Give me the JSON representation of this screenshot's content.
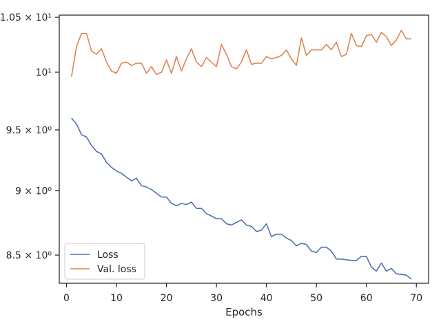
{
  "chart_data": {
    "type": "line",
    "xlabel": "Epochs",
    "ylabel": "",
    "xlim": [
      -1.45,
      72.45
    ],
    "ylim": [
      8.29,
      10.52
    ],
    "y_scale": "log",
    "grid": false,
    "legend_position": "lower-left",
    "x_ticks": [
      {
        "value": 0,
        "label": "0"
      },
      {
        "value": 10,
        "label": "10"
      },
      {
        "value": 20,
        "label": "20"
      },
      {
        "value": 30,
        "label": "30"
      },
      {
        "value": 40,
        "label": "40"
      },
      {
        "value": 50,
        "label": "50"
      },
      {
        "value": 60,
        "label": "60"
      },
      {
        "value": 70,
        "label": "70"
      }
    ],
    "y_ticks": [
      {
        "value": 8.5,
        "label": "8.5 × 10⁰"
      },
      {
        "value": 9.0,
        "label": "9 × 10⁰"
      },
      {
        "value": 9.5,
        "label": "9.5 × 10⁰"
      },
      {
        "value": 10.0,
        "label": "10¹"
      },
      {
        "value": 10.5,
        "label": "1.05 × 10¹"
      }
    ],
    "x": [
      1,
      2,
      3,
      4,
      5,
      6,
      7,
      8,
      9,
      10,
      11,
      12,
      13,
      14,
      15,
      16,
      17,
      18,
      19,
      20,
      21,
      22,
      23,
      24,
      25,
      26,
      27,
      28,
      29,
      30,
      31,
      32,
      33,
      34,
      35,
      36,
      37,
      38,
      39,
      40,
      41,
      42,
      43,
      44,
      45,
      46,
      47,
      48,
      49,
      50,
      51,
      52,
      53,
      54,
      55,
      56,
      57,
      58,
      59,
      60,
      61,
      62,
      63,
      64,
      65,
      66,
      67,
      68,
      69
    ],
    "series": [
      {
        "name": "Loss",
        "color": "#4c72b0",
        "values": [
          9.6,
          9.55,
          9.46,
          9.44,
          9.37,
          9.32,
          9.3,
          9.23,
          9.19,
          9.16,
          9.14,
          9.11,
          9.08,
          9.1,
          9.04,
          9.03,
          9.01,
          8.98,
          8.95,
          8.95,
          8.9,
          8.88,
          8.9,
          8.89,
          8.91,
          8.86,
          8.86,
          8.82,
          8.8,
          8.78,
          8.78,
          8.74,
          8.73,
          8.75,
          8.77,
          8.73,
          8.72,
          8.68,
          8.69,
          8.74,
          8.64,
          8.66,
          8.66,
          8.63,
          8.61,
          8.57,
          8.59,
          8.58,
          8.53,
          8.52,
          8.56,
          8.56,
          8.53,
          8.47,
          8.47,
          8.465,
          8.46,
          8.46,
          8.49,
          8.49,
          8.41,
          8.38,
          8.44,
          8.38,
          8.4,
          8.36,
          8.355,
          8.35,
          8.32
        ]
      },
      {
        "name": "Val. loss",
        "color": "#dd8452",
        "values": [
          9.96,
          10.23,
          10.35,
          10.35,
          10.19,
          10.16,
          10.21,
          10.09,
          10.01,
          9.99,
          10.08,
          10.09,
          10.06,
          10.08,
          10.08,
          9.99,
          10.05,
          9.98,
          10.0,
          10.11,
          9.99,
          10.14,
          10.01,
          10.12,
          10.21,
          10.09,
          10.05,
          10.13,
          10.09,
          10.05,
          10.25,
          10.16,
          10.05,
          10.03,
          10.09,
          10.2,
          10.07,
          10.08,
          10.08,
          10.14,
          10.12,
          10.13,
          10.15,
          10.2,
          10.12,
          10.06,
          10.31,
          10.15,
          10.2,
          10.2,
          10.2,
          10.25,
          10.2,
          10.27,
          10.14,
          10.16,
          10.35,
          10.24,
          10.23,
          10.33,
          10.34,
          10.27,
          10.36,
          10.32,
          10.24,
          10.29,
          10.38,
          10.3,
          10.3
        ]
      }
    ]
  }
}
